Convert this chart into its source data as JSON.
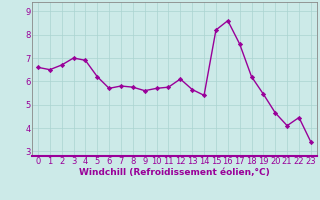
{
  "x": [
    0,
    1,
    2,
    3,
    4,
    5,
    6,
    7,
    8,
    9,
    10,
    11,
    12,
    13,
    14,
    15,
    16,
    17,
    18,
    19,
    20,
    21,
    22,
    23
  ],
  "y": [
    6.6,
    6.5,
    6.7,
    7.0,
    6.9,
    6.2,
    5.7,
    5.8,
    5.75,
    5.6,
    5.7,
    5.75,
    6.1,
    5.65,
    5.4,
    8.2,
    8.6,
    7.6,
    6.2,
    5.45,
    4.65,
    4.1,
    4.45,
    3.4
  ],
  "line_color": "#990099",
  "marker": "D",
  "marker_size": 2.2,
  "linewidth": 1.0,
  "bg_color": "#cceae8",
  "grid_color": "#aad4d0",
  "xlabel": "Windchill (Refroidissement éolien,°C)",
  "xlabel_fontsize": 6.5,
  "ylim": [
    2.8,
    9.4
  ],
  "xlim": [
    -0.5,
    23.5
  ],
  "yticks": [
    3,
    4,
    5,
    6,
    7,
    8,
    9
  ],
  "xticks": [
    0,
    1,
    2,
    3,
    4,
    5,
    6,
    7,
    8,
    9,
    10,
    11,
    12,
    13,
    14,
    15,
    16,
    17,
    18,
    19,
    20,
    21,
    22,
    23
  ],
  "tick_fontsize": 6.0,
  "spine_color": "#888888",
  "xlabel_color": "#990099",
  "xlabel_bold": true
}
